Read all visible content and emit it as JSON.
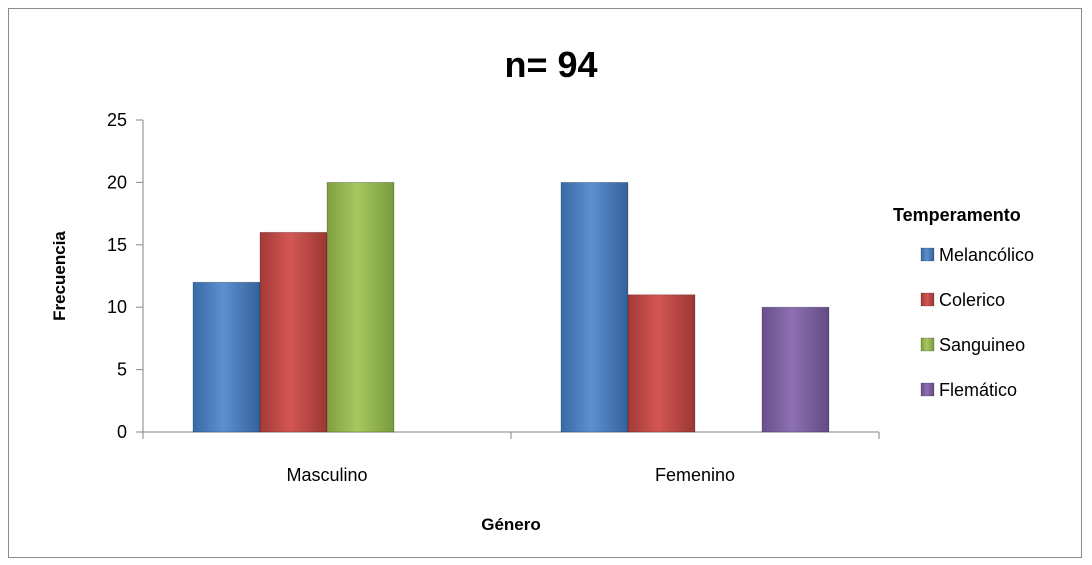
{
  "chart_data": {
    "type": "bar",
    "title": "n= 94",
    "xlabel": "Género",
    "ylabel": "Frecuencia",
    "categories": [
      "Masculino",
      "Femenino"
    ],
    "ylim": [
      0,
      25
    ],
    "yticks": [
      0,
      5,
      10,
      15,
      20,
      25
    ],
    "grid": false,
    "legend": {
      "title": "Temperamento",
      "placement": "right"
    },
    "series": [
      {
        "name": "Melancólico",
        "color": "#4a7ebb",
        "values": [
          12,
          20
        ]
      },
      {
        "name": "Colerico",
        "color": "#be4b48",
        "values": [
          16,
          11
        ]
      },
      {
        "name": "Sanguineo",
        "color": "#98b954",
        "values": [
          20,
          null
        ]
      },
      {
        "name": "Flemático",
        "color": "#7e62a1",
        "values": [
          null,
          10
        ]
      }
    ]
  }
}
